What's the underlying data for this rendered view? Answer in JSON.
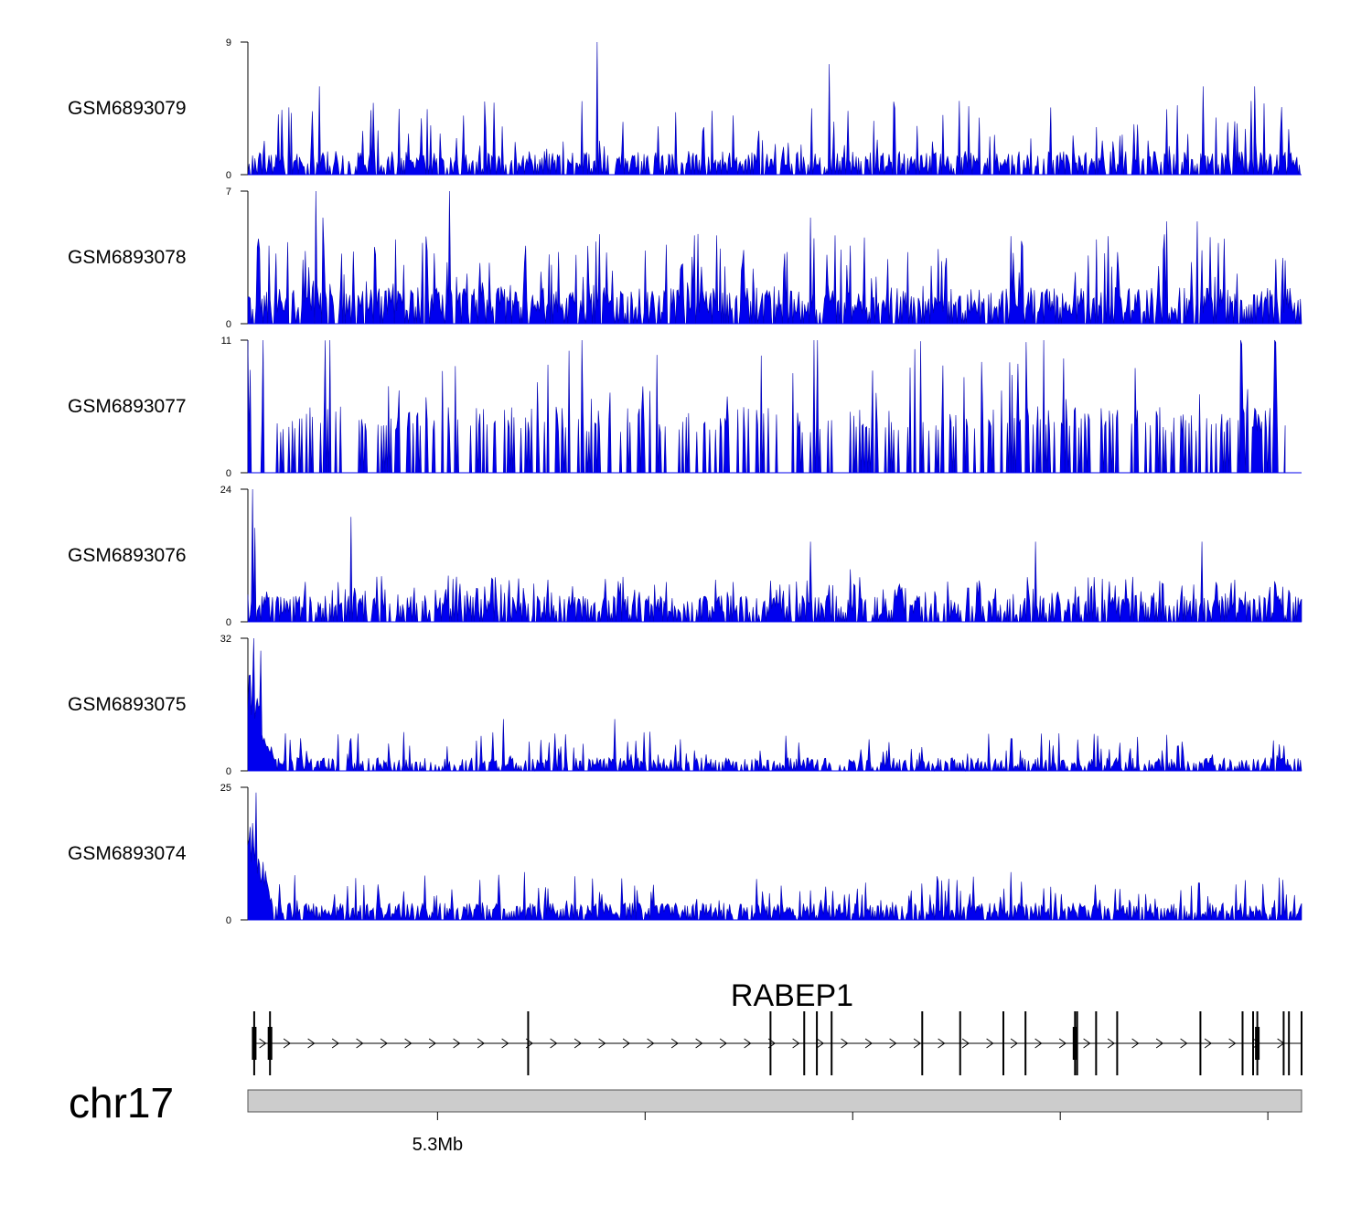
{
  "chart_data": {
    "type": "area",
    "title": "",
    "colors": {
      "signal": "#0000ee",
      "axis": "#000000",
      "ideogram": "#cccccc"
    },
    "tracks": [
      {
        "name": "GSM6893079",
        "ymax": 9,
        "ymin": 0,
        "seed": 79,
        "density": 0.62,
        "base": 1.0,
        "peakProb": 0.09,
        "peakMax": 5.0,
        "peaks": [
          [
            0.331,
            9
          ],
          [
            0.552,
            7.5
          ],
          [
            0.068,
            6
          ],
          [
            0.907,
            6
          ],
          [
            0.955,
            6
          ],
          [
            0.952,
            5
          ],
          [
            0.675,
            5
          ],
          [
            0.535,
            4.5
          ]
        ]
      },
      {
        "name": "GSM6893078",
        "ymax": 7,
        "ymin": 0,
        "seed": 78,
        "density": 0.74,
        "base": 1.2,
        "peakProb": 0.13,
        "peakMax": 4.8,
        "peaks": [
          [
            0.064,
            7
          ],
          [
            0.191,
            7
          ],
          [
            0.071,
            5.6
          ],
          [
            0.534,
            5.6
          ],
          [
            0.872,
            5.4
          ],
          [
            0.901,
            5.4
          ]
        ]
      },
      {
        "name": "GSM6893077",
        "ymax": 11,
        "ymin": 0,
        "seed": 77,
        "density": 0.4,
        "base": 5.5,
        "peakProb": 0.22,
        "peakMax": 11,
        "sparse": true,
        "peaks": [
          [
            0.0,
            11
          ],
          [
            0.015,
            11
          ],
          [
            0.078,
            11
          ],
          [
            0.078,
            11
          ],
          [
            0.317,
            11
          ],
          [
            0.537,
            11
          ],
          [
            0.541,
            11
          ],
          [
            0.755,
            11
          ],
          [
            0.974,
            11
          ],
          [
            0.942,
            11
          ]
        ]
      },
      {
        "name": "GSM6893076",
        "ymax": 24,
        "ymin": 0,
        "seed": 76,
        "density": 0.55,
        "base": 3.0,
        "peakProb": 0.18,
        "peakMax": 8.5,
        "peaks": [
          [
            0.004,
            24
          ],
          [
            0.007,
            17
          ],
          [
            0.098,
            19
          ],
          [
            0.534,
            14.5
          ],
          [
            0.747,
            14.5
          ],
          [
            0.905,
            14.5
          ],
          [
            0.572,
            9.5
          ]
        ]
      },
      {
        "name": "GSM6893075",
        "ymax": 32,
        "ymin": 0,
        "seed": 75,
        "density": 0.6,
        "base": 2.0,
        "peakProb": 0.1,
        "peakMax": 9.5,
        "early": 26,
        "peaks": [
          [
            0.006,
            32
          ],
          [
            0.012,
            29
          ],
          [
            0.243,
            12.5
          ],
          [
            0.348,
            12.5
          ],
          [
            0.105,
            9
          ],
          [
            0.753,
            9
          ]
        ]
      },
      {
        "name": "GSM6893074",
        "ymax": 25,
        "ymin": 0,
        "seed": 74,
        "density": 0.72,
        "base": 2.0,
        "peakProb": 0.1,
        "peakMax": 8.5,
        "early": 22,
        "peaks": [
          [
            0.008,
            24
          ],
          [
            0.238,
            8.5
          ],
          [
            0.262,
            9
          ],
          [
            0.724,
            9
          ],
          [
            0.947,
            7.5
          ]
        ]
      }
    ],
    "gene": {
      "name": "RABEP1",
      "strand": "+",
      "start_frac": 0.004,
      "end_frac": 1.0,
      "exons": [
        0.006,
        0.021,
        0.266,
        0.496,
        0.528,
        0.54,
        0.554,
        0.64,
        0.676,
        0.717,
        0.738,
        0.785,
        0.787,
        0.805,
        0.825,
        0.904,
        0.944,
        0.954,
        0.958,
        0.983,
        0.988,
        1.0
      ],
      "thick_exons": [
        0.006,
        0.021,
        0.785,
        0.958
      ]
    },
    "chromosome": "chr17",
    "xaxis": {
      "tick_fracs": [
        0.18,
        0.377,
        0.574,
        0.771,
        0.968
      ],
      "tick_labels": [
        "5.3Mb",
        "",
        "",
        "",
        ""
      ]
    }
  }
}
